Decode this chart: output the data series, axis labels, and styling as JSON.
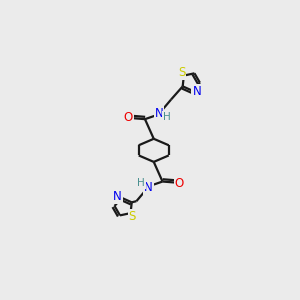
{
  "background_color": "#ebebeb",
  "bond_color": "#1a1a1a",
  "atom_colors": {
    "N": "#0000ee",
    "O": "#ee0000",
    "S": "#cccc00",
    "H": "#4a9090"
  },
  "figure_size": [
    3.0,
    3.0
  ],
  "dpi": 100,
  "lw": 1.6,
  "fontsize": 8.5
}
